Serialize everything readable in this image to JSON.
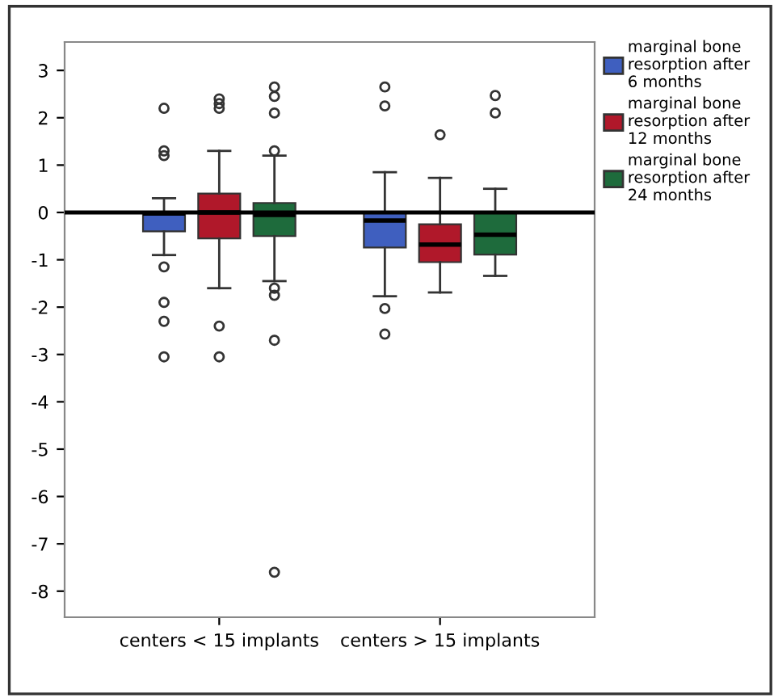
{
  "chart_data": {
    "type": "box",
    "categories": [
      "centers < 15 implants",
      "centers > 15 implants"
    ],
    "ylim": [
      -8.55,
      3.6
    ],
    "yticks": [
      3,
      2,
      1,
      0,
      -1,
      -2,
      -3,
      -4,
      -5,
      -6,
      -7,
      -8
    ],
    "legend": "top right",
    "grid": false,
    "ref_lines": [
      {
        "axis": "y",
        "value": 0,
        "color": "#000000"
      }
    ],
    "series": [
      {
        "name": "marginal bone\nresorption after\n6 months",
        "color": "#3f5fbf",
        "boxes": [
          {
            "low": -0.9,
            "q1": -0.4,
            "median": -0.02,
            "q3": 0,
            "high": 0.3,
            "outliers": [
              2.2,
              1.3,
              1.2,
              -1.15,
              -1.9,
              -2.3,
              -3.05
            ]
          },
          {
            "low": -1.77,
            "q1": -0.74,
            "median": -0.17,
            "q3": 0,
            "high": 0.85,
            "outliers": [
              2.65,
              2.25,
              -2.03,
              -2.57
            ]
          }
        ]
      },
      {
        "name": "marginal bone\nresorption after\n12 months",
        "color": "#b0182a",
        "boxes": [
          {
            "low": -1.6,
            "q1": -0.55,
            "median": 0,
            "q3": 0.4,
            "high": 1.3,
            "outliers": [
              2.4,
              2.3,
              2.2,
              -2.4,
              -3.05
            ]
          },
          {
            "low": -1.69,
            "q1": -1.05,
            "median": -0.68,
            "q3": -0.25,
            "high": 0.73,
            "outliers": [
              1.64
            ]
          }
        ]
      },
      {
        "name": "marginal bone\nresorption after\n24 months",
        "color": "#1e6b3c",
        "boxes": [
          {
            "low": -1.45,
            "q1": -0.5,
            "median": -0.05,
            "q3": 0.2,
            "high": 1.2,
            "outliers": [
              2.65,
              2.45,
              2.1,
              1.3,
              -1.6,
              -1.75,
              -2.7,
              -7.6
            ]
          },
          {
            "low": -1.34,
            "q1": -0.89,
            "median": -0.47,
            "q3": 0,
            "high": 0.5,
            "outliers": [
              2.47,
              2.1
            ]
          }
        ]
      }
    ]
  }
}
